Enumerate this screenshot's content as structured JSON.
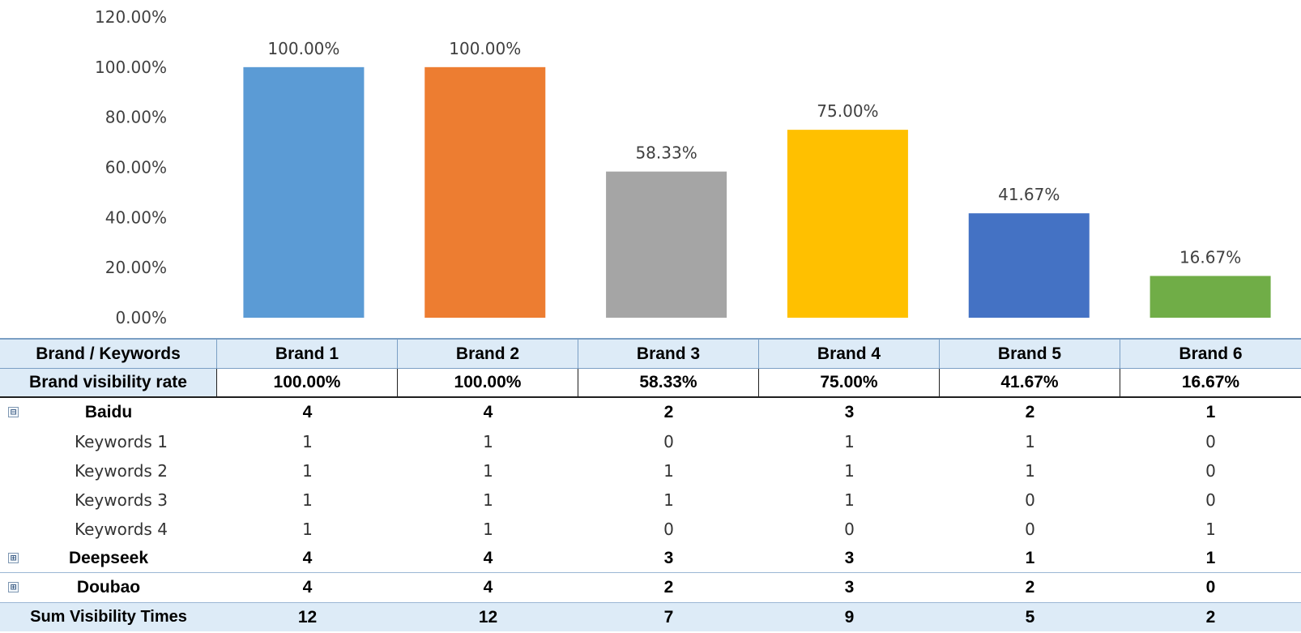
{
  "chart_data": {
    "type": "bar",
    "categories": [
      "Brand 1",
      "Brand 2",
      "Brand 3",
      "Brand 4",
      "Brand 5",
      "Brand 6"
    ],
    "values": [
      100.0,
      100.0,
      58.33,
      75.0,
      41.67,
      16.67
    ],
    "data_labels": [
      "100.00%",
      "100.00%",
      "58.33%",
      "75.00%",
      "41.67%",
      "16.67%"
    ],
    "colors": [
      "#5b9bd5",
      "#ed7d31",
      "#a5a5a5",
      "#ffc000",
      "#4472c4",
      "#70ad47"
    ],
    "y_ticks": [
      "0.00%",
      "20.00%",
      "40.00%",
      "60.00%",
      "80.00%",
      "100.00%",
      "120.00%"
    ],
    "ylim": [
      0,
      120
    ],
    "grid": false,
    "legend": "none"
  },
  "table": {
    "header_label": "Brand / Keywords",
    "brands": [
      "Brand 1",
      "Brand 2",
      "Brand 3",
      "Brand 4",
      "Brand 5",
      "Brand 6"
    ],
    "rate_label": "Brand visibility rate",
    "rates": [
      "100.00%",
      "100.00%",
      "58.33%",
      "75.00%",
      "41.67%",
      "16.67%"
    ],
    "groups": [
      {
        "name": "Baidu",
        "state": "expanded",
        "toggle_icon": "⊟",
        "values": [
          "4",
          "4",
          "2",
          "3",
          "2",
          "1"
        ],
        "keywords": [
          {
            "name": "Keywords 1",
            "values": [
              "1",
              "1",
              "0",
              "1",
              "1",
              "0"
            ]
          },
          {
            "name": "Keywords 2",
            "values": [
              "1",
              "1",
              "1",
              "1",
              "1",
              "0"
            ]
          },
          {
            "name": "Keywords 3",
            "values": [
              "1",
              "1",
              "1",
              "1",
              "0",
              "0"
            ]
          },
          {
            "name": "Keywords 4",
            "values": [
              "1",
              "1",
              "0",
              "0",
              "0",
              "1"
            ]
          }
        ]
      },
      {
        "name": "Deepseek",
        "state": "collapsed",
        "toggle_icon": "⊞",
        "values": [
          "4",
          "4",
          "3",
          "3",
          "1",
          "1"
        ]
      },
      {
        "name": "Doubao",
        "state": "collapsed",
        "toggle_icon": "⊞",
        "values": [
          "4",
          "4",
          "2",
          "3",
          "2",
          "0"
        ]
      }
    ],
    "total_label": "Sum Visibility Times",
    "totals": [
      "12",
      "12",
      "7",
      "9",
      "5",
      "2"
    ]
  }
}
